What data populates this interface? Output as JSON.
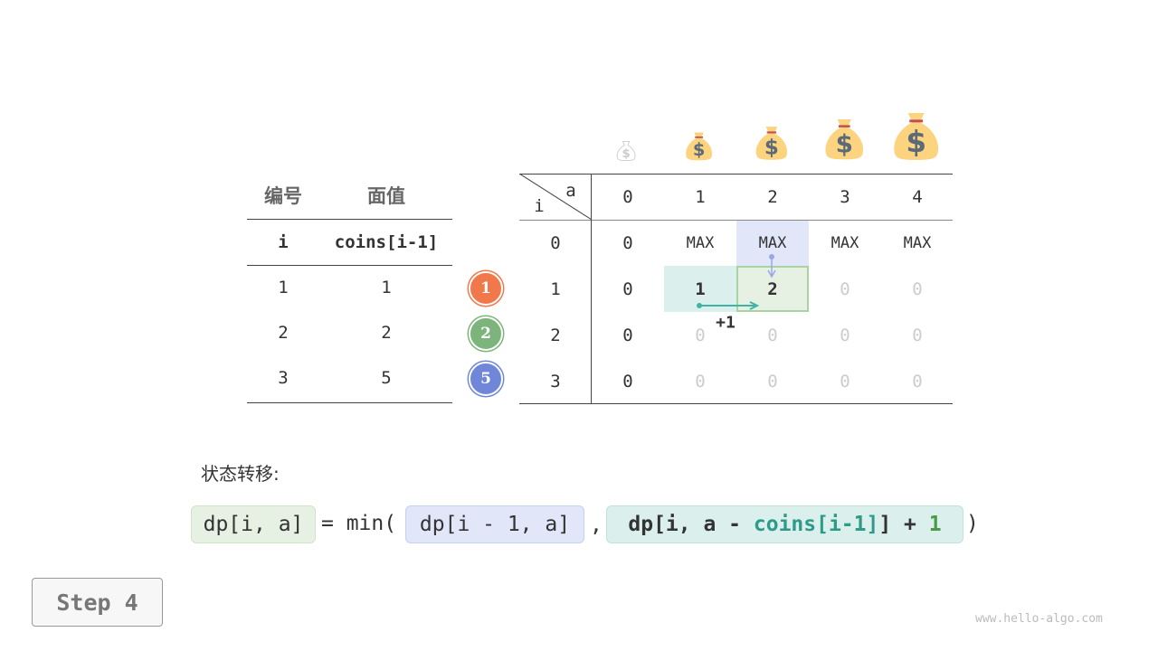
{
  "coins_table": {
    "headers": [
      "编号",
      "面值"
    ],
    "subheaders": [
      "i",
      "coins[i-1]"
    ],
    "rows": [
      [
        "1",
        "1"
      ],
      [
        "2",
        "2"
      ],
      [
        "3",
        "5"
      ]
    ]
  },
  "coin_badges": [
    {
      "label": "1",
      "color": "#f0784a"
    },
    {
      "label": "2",
      "color": "#7db47c"
    },
    {
      "label": "5",
      "color": "#6f86d9"
    }
  ],
  "dp_table": {
    "corner_col": "a",
    "corner_row": "i",
    "col_headers": [
      "0",
      "1",
      "2",
      "3",
      "4"
    ],
    "row_headers": [
      "0",
      "1",
      "2",
      "3"
    ],
    "rows": [
      [
        "0",
        "MAX",
        "MAX",
        "MAX",
        "MAX"
      ],
      [
        "0",
        "1",
        "2",
        "0",
        "0"
      ],
      [
        "0",
        "0",
        "0",
        "0",
        "0"
      ],
      [
        "0",
        "0",
        "0",
        "0",
        "0"
      ]
    ]
  },
  "annotation": "+1",
  "transition_label": "状态转移:",
  "formula": {
    "lhs": "dp[i, a]",
    "eq": "= min(",
    "arg1": "dp[i - 1, a]",
    "comma": ",",
    "arg2_a": "dp[i, a - ",
    "arg2_b": "coins[i-1]",
    "arg2_c": "] + ",
    "arg2_d": "1",
    "close": ")"
  },
  "step_button": "Step 4",
  "watermark": "www.hello-algo.com",
  "colors": {
    "blue_highlight": "#e1e6f8",
    "teal_highlight": "#dbefec",
    "green_highlight": "#e6f1e3",
    "bag": "#fcd37f"
  }
}
